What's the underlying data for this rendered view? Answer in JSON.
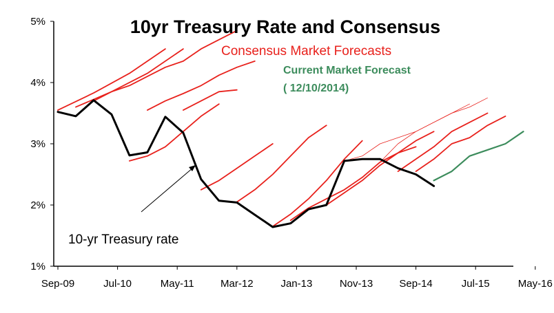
{
  "chart_data": {
    "type": "line",
    "title": "10yr Treasury Rate and Consensus",
    "xlabel": "",
    "ylabel": "",
    "ylim": [
      1,
      5
    ],
    "y_ticks": [
      "1%",
      "2%",
      "3%",
      "4%",
      "5%"
    ],
    "x_ticks": [
      "Sep-09",
      "Jul-10",
      "May-11",
      "Mar-12",
      "Jan-13",
      "Nov-13",
      "Sep-14",
      "Jul-15",
      "May-16"
    ],
    "x_start": "2009-09",
    "grid": false,
    "annotations": {
      "consensus_label": "Consensus Market Forecasts",
      "current_label_line1": "Current Market Forecast",
      "current_label_line2": "( 12/10/2014)",
      "treasury_label": "10-yr Treasury rate"
    },
    "colors": {
      "treasury": "#000000",
      "consensus": "#e8211c",
      "current": "#3c8c5c"
    },
    "series": [
      {
        "name": "10-yr Treasury rate",
        "x": [
          "2009-09",
          "2009-12",
          "2010-03",
          "2010-06",
          "2010-09",
          "2010-12",
          "2011-03",
          "2011-06",
          "2011-09",
          "2011-12",
          "2012-03",
          "2012-06",
          "2012-09",
          "2012-12",
          "2013-03",
          "2013-06",
          "2013-09",
          "2013-12",
          "2014-03",
          "2014-06",
          "2014-09",
          "2014-12"
        ],
        "values": [
          3.52,
          3.45,
          3.71,
          3.48,
          2.81,
          2.86,
          3.44,
          3.18,
          2.42,
          2.07,
          2.04,
          1.84,
          1.64,
          1.7,
          1.93,
          2.0,
          2.72,
          2.75,
          2.75,
          2.6,
          2.5,
          2.31
        ]
      },
      {
        "x": [
          "2009-09",
          "2010-03",
          "2010-09",
          "2011-03"
        ],
        "values": [
          3.55,
          3.83,
          4.15,
          4.55
        ]
      },
      {
        "x": [
          "2009-12",
          "2010-06",
          "2010-12",
          "2011-06"
        ],
        "values": [
          3.6,
          3.85,
          4.15,
          4.55
        ]
      },
      {
        "x": [
          "2010-03",
          "2010-06",
          "2010-09",
          "2010-12",
          "2011-03",
          "2011-06",
          "2011-09",
          "2011-12",
          "2012-03"
        ],
        "values": [
          3.7,
          3.85,
          3.95,
          4.1,
          4.25,
          4.35,
          4.55,
          4.7,
          4.85
        ]
      },
      {
        "x": [
          "2010-12",
          "2011-03",
          "2011-06",
          "2011-09",
          "2011-12",
          "2012-03",
          "2012-06"
        ],
        "values": [
          3.55,
          3.7,
          3.82,
          3.95,
          4.12,
          4.25,
          4.35
        ]
      },
      {
        "x": [
          "2010-09",
          "2010-12",
          "2011-03",
          "2011-06",
          "2011-09",
          "2011-12"
        ],
        "values": [
          2.72,
          2.8,
          2.95,
          3.2,
          3.45,
          3.65
        ]
      },
      {
        "x": [
          "2011-06",
          "2011-09",
          "2011-12",
          "2012-03"
        ],
        "values": [
          3.55,
          3.7,
          3.85,
          3.88
        ]
      },
      {
        "x": [
          "2011-09",
          "2011-12",
          "2012-03",
          "2012-06",
          "2012-09"
        ],
        "values": [
          2.25,
          2.4,
          2.6,
          2.8,
          3.0
        ]
      },
      {
        "x": [
          "2012-03",
          "2012-06",
          "2012-09",
          "2012-12",
          "2013-03",
          "2013-06"
        ],
        "values": [
          2.05,
          2.25,
          2.5,
          2.8,
          3.1,
          3.3
        ]
      },
      {
        "x": [
          "2012-09",
          "2012-12",
          "2013-03",
          "2013-06",
          "2013-09",
          "2013-12"
        ],
        "values": [
          1.65,
          1.85,
          2.1,
          2.4,
          2.75,
          3.05
        ]
      },
      {
        "x": [
          "2012-12",
          "2013-03",
          "2013-06",
          "2013-09",
          "2013-12",
          "2014-03",
          "2014-06",
          "2014-09"
        ],
        "values": [
          1.75,
          1.95,
          2.1,
          2.25,
          2.45,
          2.7,
          2.85,
          2.95
        ]
      },
      {
        "x": [
          "2013-06",
          "2013-09",
          "2013-12",
          "2014-03",
          "2014-06",
          "2014-09",
          "2014-12"
        ],
        "values": [
          2.0,
          2.2,
          2.4,
          2.65,
          2.85,
          3.05,
          3.2
        ]
      },
      {
        "x": [
          "2014-06",
          "2014-09",
          "2014-12",
          "2015-03",
          "2015-06",
          "2015-09"
        ],
        "values": [
          2.55,
          2.75,
          2.95,
          3.2,
          3.35,
          3.5
        ]
      },
      {
        "x": [
          "2014-09",
          "2014-12",
          "2015-03",
          "2015-06",
          "2015-09",
          "2015-12"
        ],
        "values": [
          2.55,
          2.75,
          3.0,
          3.1,
          3.3,
          3.45
        ]
      },
      {
        "x": [
          "2013-09",
          "2013-12",
          "2014-03",
          "2014-06",
          "2014-09",
          "2014-12",
          "2015-03",
          "2015-06"
        ],
        "values": [
          2.72,
          2.8,
          3.0,
          3.1,
          3.2,
          3.35,
          3.5,
          3.65
        ],
        "thin": true
      },
      {
        "x": [
          "2014-03",
          "2014-06",
          "2014-09",
          "2014-12",
          "2015-03",
          "2015-06",
          "2015-09"
        ],
        "values": [
          2.7,
          3.0,
          3.2,
          3.35,
          3.5,
          3.6,
          3.75
        ],
        "thin": true
      },
      {
        "x": [
          "2014-12",
          "2015-03",
          "2015-06",
          "2015-09",
          "2015-12",
          "2016-03"
        ],
        "values": [
          2.4,
          2.55,
          2.8,
          2.9,
          3.0,
          3.2
        ],
        "current": true
      }
    ]
  }
}
